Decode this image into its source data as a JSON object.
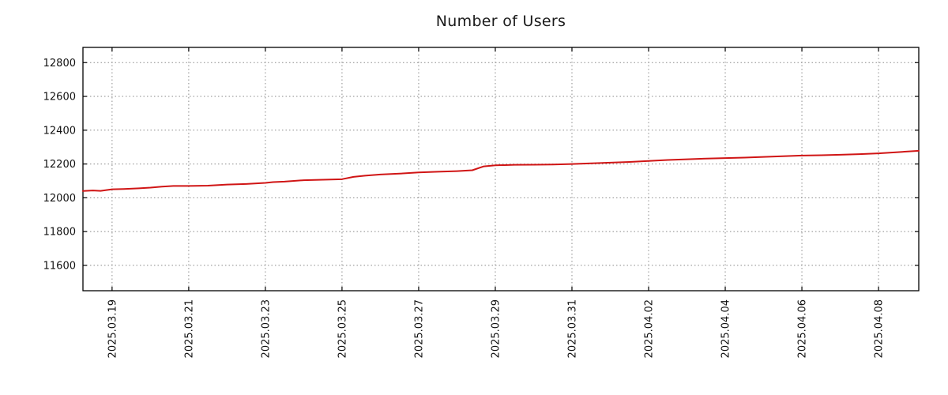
{
  "page": {
    "background": "#ffffff"
  },
  "chart_data": {
    "type": "line",
    "title": "Number of Users",
    "xlabel": "",
    "ylabel": "",
    "x_unit": "days since 2025-03-19",
    "xlim": [
      -0.76,
      21.05
    ],
    "ylim": [
      11450,
      12890
    ],
    "grid": {
      "on": true,
      "style": "dotted",
      "color": "#8a8a8a"
    },
    "legend": "none",
    "border_color": "#000000",
    "yticks": [
      11600,
      11800,
      12000,
      12200,
      12400,
      12600,
      12800
    ],
    "xticks": [
      {
        "pos": 0,
        "label": "2025.03.19"
      },
      {
        "pos": 2,
        "label": "2025.03.21"
      },
      {
        "pos": 4,
        "label": "2025.03.23"
      },
      {
        "pos": 6,
        "label": "2025.03.25"
      },
      {
        "pos": 8,
        "label": "2025.03.27"
      },
      {
        "pos": 10,
        "label": "2025.03.29"
      },
      {
        "pos": 12,
        "label": "2025.03.31"
      },
      {
        "pos": 14,
        "label": "2025.04.02"
      },
      {
        "pos": 16,
        "label": "2025.04.04"
      },
      {
        "pos": 18,
        "label": "2025.04.06"
      },
      {
        "pos": 20,
        "label": "2025.04.08"
      }
    ],
    "series": [
      {
        "name": "number-of-users",
        "color": "#d01515",
        "line_width": 2,
        "x": [
          -0.76,
          -0.5,
          -0.3,
          0,
          0.3,
          0.7,
          1,
          1.3,
          1.6,
          2,
          2.5,
          3,
          3.5,
          4,
          4.2,
          4.5,
          5,
          5.5,
          6,
          6.3,
          6.6,
          7,
          7.5,
          8,
          8.5,
          9,
          9.4,
          9.7,
          10,
          10.5,
          11,
          11.5,
          12,
          12.5,
          13,
          13.5,
          14,
          14.5,
          15,
          15.5,
          16,
          16.5,
          17,
          17.5,
          18,
          18.5,
          19,
          19.5,
          20,
          20.5,
          21.05
        ],
        "values": [
          12040,
          12043,
          12041,
          12050,
          12052,
          12056,
          12060,
          12066,
          12070,
          12070,
          12072,
          12078,
          12082,
          12088,
          12093,
          12096,
          12104,
          12107,
          12110,
          12124,
          12131,
          12138,
          12143,
          12150,
          12154,
          12158,
          12163,
          12186,
          12192,
          12195,
          12196,
          12197,
          12200,
          12204,
          12208,
          12212,
          12218,
          12224,
          12228,
          12232,
          12235,
          12238,
          12242,
          12246,
          12250,
          12252,
          12255,
          12258,
          12263,
          12270,
          12278
        ]
      }
    ]
  }
}
